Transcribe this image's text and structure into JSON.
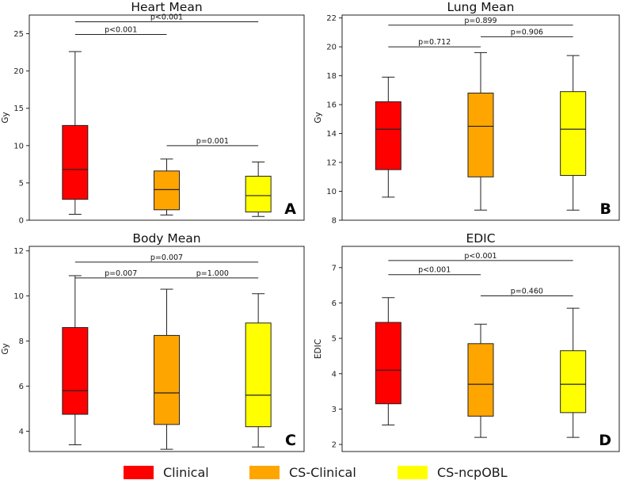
{
  "chart_data": [
    {
      "type": "box",
      "panel_letter": "A",
      "title": "Heart Mean",
      "ylabel": "Gy",
      "xlabel": "",
      "ylim": [
        0,
        27.5
      ],
      "yticks": [
        0,
        5,
        10,
        15,
        20,
        25
      ],
      "ytick_labels": [
        "0",
        "5",
        "10",
        "15",
        "20",
        "25"
      ],
      "series": [
        {
          "name": "Clinical",
          "color": "#ff0000",
          "whisker_low": 0.8,
          "q1": 2.8,
          "median": 6.8,
          "q3": 12.7,
          "whisker_high": 22.6
        },
        {
          "name": "CS-Clinical",
          "color": "#ffa500",
          "whisker_low": 0.7,
          "q1": 1.4,
          "median": 4.1,
          "q3": 6.6,
          "whisker_high": 8.2
        },
        {
          "name": "CS-ncpOBL",
          "color": "#ffff00",
          "whisker_low": 0.5,
          "q1": 1.1,
          "median": 3.3,
          "q3": 5.9,
          "whisker_high": 7.8
        }
      ],
      "annotations": [
        {
          "from": 0,
          "to": 2,
          "y": 26.6,
          "label": "p<0.001"
        },
        {
          "from": 0,
          "to": 1,
          "y": 24.9,
          "label": "p<0.001"
        },
        {
          "from": 1,
          "to": 2,
          "y": 10.0,
          "label": "p=0.001"
        }
      ]
    },
    {
      "type": "box",
      "panel_letter": "B",
      "title": "Lung Mean",
      "ylabel": "Gy",
      "xlabel": "",
      "ylim": [
        8,
        22.2
      ],
      "yticks": [
        8,
        10,
        12,
        14,
        16,
        18,
        20,
        22
      ],
      "ytick_labels": [
        "8",
        "10",
        "12",
        "14",
        "16",
        "18",
        "20",
        "22"
      ],
      "series": [
        {
          "name": "Clinical",
          "color": "#ff0000",
          "whisker_low": 9.6,
          "q1": 11.5,
          "median": 14.3,
          "q3": 16.2,
          "whisker_high": 17.9
        },
        {
          "name": "CS-Clinical",
          "color": "#ffa500",
          "whisker_low": 8.7,
          "q1": 11.0,
          "median": 14.5,
          "q3": 16.8,
          "whisker_high": 19.6
        },
        {
          "name": "CS-ncpOBL",
          "color": "#ffff00",
          "whisker_low": 8.7,
          "q1": 11.1,
          "median": 14.3,
          "q3": 16.9,
          "whisker_high": 19.4
        }
      ],
      "annotations": [
        {
          "from": 0,
          "to": 2,
          "y": 21.5,
          "label": "p=0.899"
        },
        {
          "from": 0,
          "to": 1,
          "y": 20.0,
          "label": "p=0.712"
        },
        {
          "from": 1,
          "to": 2,
          "y": 20.7,
          "label": "p=0.906"
        }
      ]
    },
    {
      "type": "box",
      "panel_letter": "C",
      "title": "Body Mean",
      "ylabel": "Gy",
      "xlabel": "",
      "ylim": [
        3.1,
        12.2
      ],
      "yticks": [
        4,
        6,
        8,
        10,
        12
      ],
      "ytick_labels": [
        "4",
        "6",
        "8",
        "10",
        "12"
      ],
      "series": [
        {
          "name": "Clinical",
          "color": "#ff0000",
          "whisker_low": 3.4,
          "q1": 4.75,
          "median": 5.8,
          "q3": 8.6,
          "whisker_high": 10.9
        },
        {
          "name": "CS-Clinical",
          "color": "#ffa500",
          "whisker_low": 3.2,
          "q1": 4.3,
          "median": 5.7,
          "q3": 8.25,
          "whisker_high": 10.3
        },
        {
          "name": "CS-ncpOBL",
          "color": "#ffff00",
          "whisker_low": 3.3,
          "q1": 4.2,
          "median": 5.6,
          "q3": 8.8,
          "whisker_high": 10.1
        }
      ],
      "annotations": [
        {
          "from": 0,
          "to": 2,
          "y": 11.5,
          "label": "p=0.007"
        },
        {
          "from": 0,
          "to": 1,
          "y": 10.8,
          "label": "p=0.007"
        },
        {
          "from": 1,
          "to": 2,
          "y": 10.8,
          "label": "p=1.000"
        }
      ]
    },
    {
      "type": "box",
      "panel_letter": "D",
      "title": "EDIC",
      "ylabel": "EDIC",
      "xlabel": "",
      "ylim": [
        1.8,
        7.6
      ],
      "yticks": [
        2,
        3,
        4,
        5,
        6,
        7
      ],
      "ytick_labels": [
        "2",
        "3",
        "4",
        "5",
        "6",
        "7"
      ],
      "series": [
        {
          "name": "Clinical",
          "color": "#ff0000",
          "whisker_low": 2.55,
          "q1": 3.15,
          "median": 4.1,
          "q3": 5.45,
          "whisker_high": 6.15
        },
        {
          "name": "CS-Clinical",
          "color": "#ffa500",
          "whisker_low": 2.2,
          "q1": 2.8,
          "median": 3.7,
          "q3": 4.85,
          "whisker_high": 5.4
        },
        {
          "name": "CS-ncpOBL",
          "color": "#ffff00",
          "whisker_low": 2.2,
          "q1": 2.9,
          "median": 3.7,
          "q3": 4.65,
          "whisker_high": 5.85
        }
      ],
      "annotations": [
        {
          "from": 0,
          "to": 2,
          "y": 7.2,
          "label": "p<0.001"
        },
        {
          "from": 0,
          "to": 1,
          "y": 6.8,
          "label": "p<0.001"
        },
        {
          "from": 1,
          "to": 2,
          "y": 6.2,
          "label": "p=0.460"
        }
      ]
    }
  ],
  "legend": [
    {
      "label": "Clinical",
      "color": "#ff0000"
    },
    {
      "label": "CS-Clinical",
      "color": "#ffa500"
    },
    {
      "label": "CS-ncpOBL",
      "color": "#ffff00"
    }
  ]
}
